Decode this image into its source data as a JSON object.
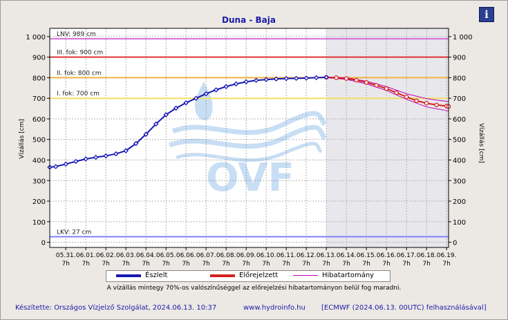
{
  "chart_data": {
    "type": "line",
    "title": "Duna - Baja",
    "ylabel_left": "Vízállás [cm]",
    "ylabel_right": "Vízállás [cm]",
    "ylim": [
      -25,
      1040
    ],
    "yticks": [
      0,
      100,
      200,
      300,
      400,
      500,
      600,
      700,
      800,
      900,
      1000
    ],
    "ytick_labels": [
      "0",
      "100",
      "200",
      "300",
      "400",
      "500",
      "600",
      "700",
      "800",
      "900",
      "1 000"
    ],
    "xticks_top": [
      "05.31.",
      "06.01.",
      "06.02.",
      "06.03.",
      "06.04.",
      "06.05.",
      "06.06.",
      "06.07.",
      "06.08.",
      "06.09.",
      "06.10.",
      "06.11.",
      "06.12.",
      "06.13.",
      "06.14.",
      "06.15.",
      "06.16.",
      "06.17.",
      "06.18.",
      "06.19."
    ],
    "xticks_bottom": [
      "7h",
      "7h",
      "7h",
      "7h",
      "7h",
      "7h",
      "7h",
      "7h",
      "7h",
      "7h",
      "7h",
      "7h",
      "7h",
      "7h",
      "7h",
      "7h",
      "7h",
      "7h",
      "7h",
      "7h"
    ],
    "x_range_days": [
      -0.8,
      19.1
    ],
    "forecast_start_day": 13,
    "grid": true,
    "reference_lines": [
      {
        "label": "LNV: 989 cm",
        "value": 989,
        "color": "#d86ad8"
      },
      {
        "label": "III. fok: 900 cm",
        "value": 900,
        "color": "#e03030"
      },
      {
        "label": "II. fok: 800 cm",
        "value": 800,
        "color": "#f0b040"
      },
      {
        "label": "I. fok: 700 cm",
        "value": 700,
        "color": "#f0e060"
      },
      {
        "label": "LKV: 27 cm",
        "value": 27,
        "color": "#8080ff"
      }
    ],
    "series": [
      {
        "name": "Észlelt",
        "color": "#1515b5",
        "x": [
          -0.8,
          -0.5,
          0,
          0.5,
          1,
          1.5,
          2,
          2.5,
          3,
          3.5,
          4,
          4.5,
          5,
          5.5,
          6,
          6.5,
          7,
          7.5,
          8,
          8.5,
          9,
          9.5,
          10,
          10.5,
          11,
          11.5,
          12,
          12.5,
          13
        ],
        "values": [
          365,
          368,
          380,
          393,
          405,
          413,
          420,
          430,
          445,
          480,
          525,
          575,
          620,
          652,
          678,
          700,
          722,
          741,
          757,
          770,
          780,
          787,
          791,
          794,
          796,
          797,
          798,
          800,
          802
        ]
      },
      {
        "name": "Előrejelzett",
        "color": "#d42020",
        "x": [
          13,
          13.5,
          14,
          14.5,
          15,
          15.5,
          16,
          16.5,
          17,
          17.5,
          18,
          18.5,
          19,
          19.1
        ],
        "values": [
          802,
          800,
          796,
          788,
          777,
          763,
          747,
          727,
          707,
          688,
          676,
          668,
          662,
          660
        ]
      },
      {
        "name": "Hibatartomány",
        "color": "#c000c0",
        "x": [
          13,
          14,
          15,
          16,
          17,
          18,
          19,
          19.1
        ],
        "upper": [
          804,
          800,
          783,
          757,
          722,
          698,
          685,
          683
        ],
        "lower": [
          800,
          792,
          770,
          738,
          695,
          658,
          640,
          637
        ]
      }
    ],
    "legend": [
      "Észlelt",
      "Előrejelzett",
      "Hibatartomány"
    ]
  },
  "texts": {
    "note": "A vízállás mintegy 70%-os valószínűséggel az előrejelzési hibatartományon belül fog maradni.",
    "footer_left": "Készítette: Országos Vízjelző Szolgálat, 2024.06.13. 10:37",
    "footer_mid": "www.hydroinfo.hu",
    "footer_right": "[ECMWF (2024.06.13. 00UTC) felhasználásával]",
    "info_icon": "i",
    "watermark": "OVF"
  },
  "colors": {
    "plot_bg": "#ffffff",
    "forecast_bg": "#e8e8ec",
    "footer": "#1a1aa6"
  }
}
